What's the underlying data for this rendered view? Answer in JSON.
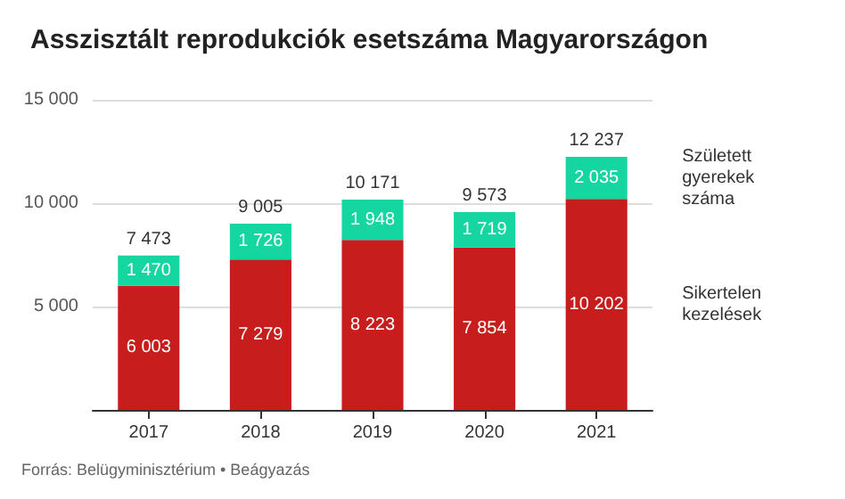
{
  "chart_data": {
    "type": "bar",
    "title": "Asszisztált reprodukciók esetszáma Magyarországon",
    "categories": [
      "2017",
      "2018",
      "2019",
      "2020",
      "2021"
    ],
    "series": [
      {
        "name": "Sikertelen kezelések",
        "color": "#c71e1d",
        "values": [
          6003,
          7279,
          8223,
          7854,
          10202
        ]
      },
      {
        "name": "Született gyerekek száma",
        "color": "#15d6a0",
        "values": [
          1470,
          1726,
          1948,
          1719,
          2035
        ]
      }
    ],
    "stacked": true,
    "data_labels": true,
    "totals": [
      "7 473",
      "9 005",
      "10 171",
      "9 573",
      "12 237"
    ],
    "ylim": [
      0,
      15000
    ],
    "yticks": [
      {
        "value": 0,
        "label": null
      },
      {
        "value": 5000,
        "label": "5 000"
      },
      {
        "value": 10000,
        "label": "10 000"
      },
      {
        "value": 15000,
        "label": "15 000"
      }
    ],
    "grid": "y",
    "legend": false,
    "annotations": [
      "Forrás: Belügyminisztérium • Beágyazás"
    ]
  }
}
